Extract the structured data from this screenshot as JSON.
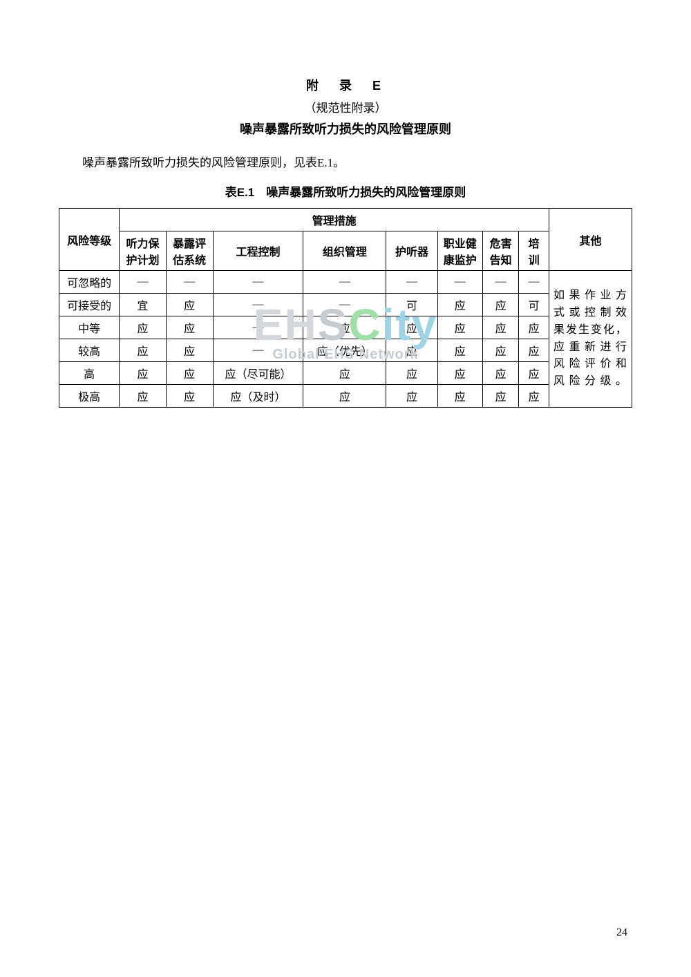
{
  "header": {
    "appendix_title": "附　录　E",
    "subtitle": "（规范性附录）",
    "main_title": "噪声暴露所致听力损失的风险管理原则"
  },
  "intro_text": "噪声暴露所致听力损失的风险管理原则，见表E.1。",
  "table": {
    "caption": "表E.1　噪声暴露所致听力损失的风险管理原则",
    "header_group": "管理措施",
    "columns": {
      "risk_level": "风险等级",
      "hearing_plan_1": "听力保",
      "hearing_plan_2": "护计划",
      "exposure_eval_1": "暴露评",
      "exposure_eval_2": "估系统",
      "eng_control": "工程控制",
      "org_mgmt": "组织管理",
      "hearing_protect": "护听器",
      "occ_health_1": "职业健",
      "occ_health_2": "康监护",
      "hazard_1": "危害",
      "hazard_2": "告知",
      "training_1": "培",
      "training_2": "训",
      "other": "其他"
    },
    "rows": [
      {
        "risk": "可忽略的",
        "plan": "—",
        "eval": "—",
        "eng": "—",
        "org": "—",
        "hear": "—",
        "health": "—",
        "hazard": "—",
        "train": "—"
      },
      {
        "risk": "可接受的",
        "plan": "宜",
        "eval": "应",
        "eng": "—",
        "org": "—",
        "hear": "可",
        "health": "应",
        "hazard": "应",
        "train": "可"
      },
      {
        "risk": "中等",
        "plan": "应",
        "eval": "应",
        "eng": "—",
        "org": "应",
        "hear": "应",
        "health": "应",
        "hazard": "应",
        "train": "应"
      },
      {
        "risk": "较高",
        "plan": "应",
        "eval": "应",
        "eng": "—",
        "org": "应（优先）",
        "hear": "应",
        "health": "应",
        "hazard": "应",
        "train": "应"
      },
      {
        "risk": "高",
        "plan": "应",
        "eval": "应",
        "eng": "应（尽可能）",
        "org": "应",
        "hear": "应",
        "health": "应",
        "hazard": "应",
        "train": "应"
      },
      {
        "risk": "极高",
        "plan": "应",
        "eval": "应",
        "eng": "应（及时）",
        "org": "应",
        "hear": "应",
        "health": "应",
        "hazard": "应",
        "train": "应"
      }
    ],
    "other_lines": [
      "如果作业方",
      "式或控制效",
      "果发生变化，",
      "应重新进行",
      "风险评价和",
      "风险分级。"
    ]
  },
  "watermark": {
    "main_e": "E",
    "main_h": "H",
    "main_s": "S",
    "main_c": "C",
    "main_ity": "ity",
    "sub": "Global EHS Network"
  },
  "page_number": "24"
}
